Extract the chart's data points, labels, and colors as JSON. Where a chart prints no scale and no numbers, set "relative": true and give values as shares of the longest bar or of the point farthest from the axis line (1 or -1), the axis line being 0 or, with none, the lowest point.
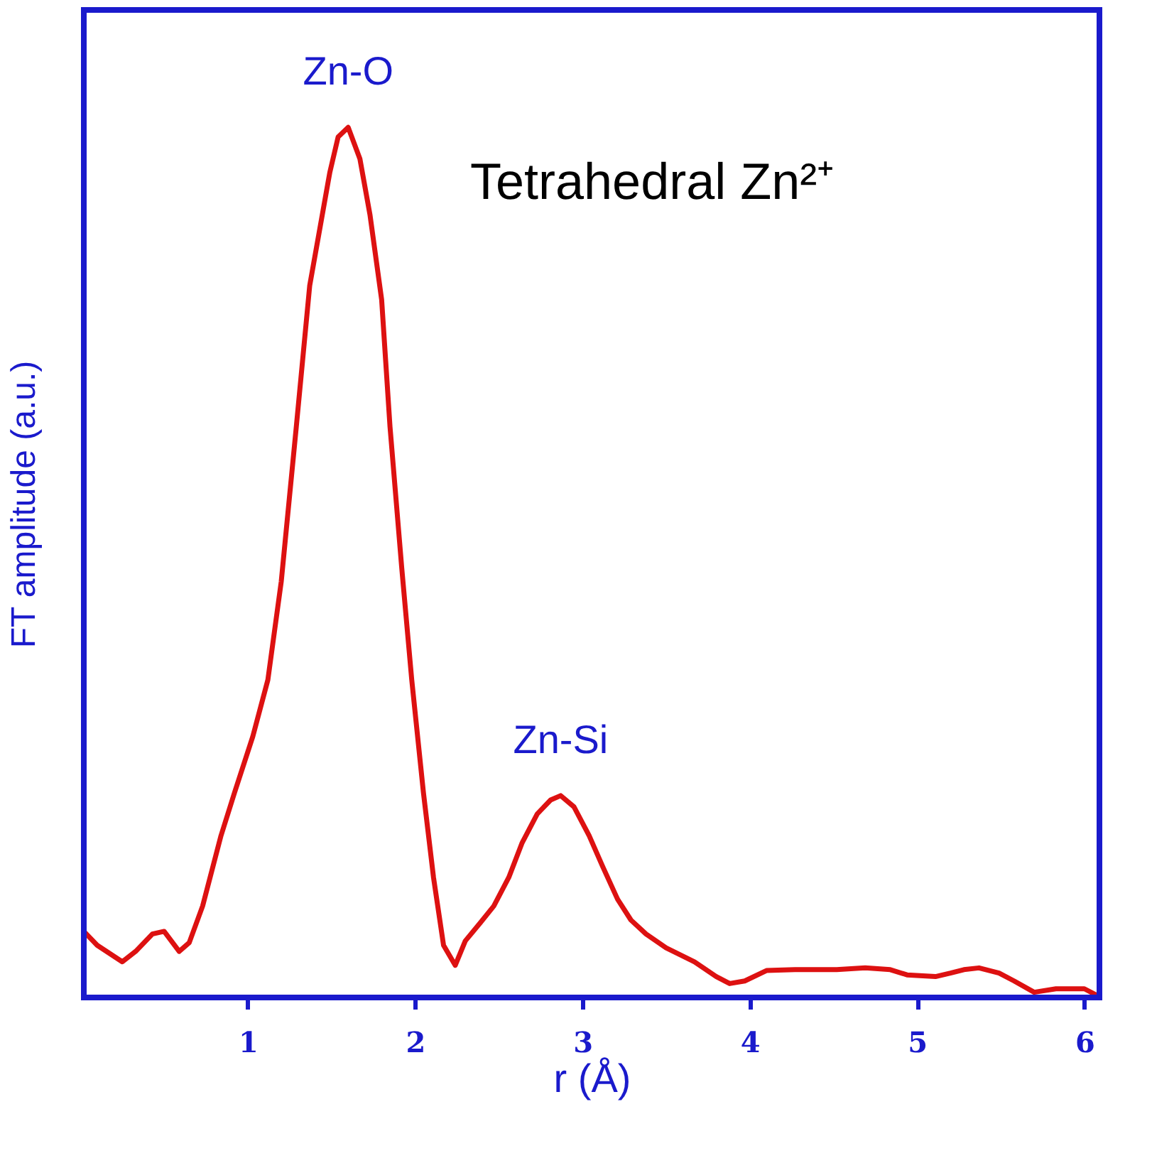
{
  "chart_data": {
    "type": "line",
    "relative": true,
    "xlabel": "r (Å)",
    "ylabel": "FT amplitude (a.u.)",
    "xlim": [
      0.02,
      6.09
    ],
    "xticks": [
      1,
      2,
      3,
      4,
      5,
      6
    ],
    "tick_labels": "x",
    "grid": false,
    "marker": "none",
    "line_style": "solid",
    "annotations": [
      {
        "text": "Zn-O",
        "x": 1.6,
        "y": 1
      },
      {
        "text": "Zn-Si",
        "x": 2.87,
        "y": 0.232
      },
      "Tetrahedral Zn²⁺"
    ],
    "series": [
      {
        "color": "#dd1111",
        "x": [
          0.02,
          0.1,
          0.25,
          0.33,
          0.43,
          0.5,
          0.59,
          0.65,
          0.73,
          0.84,
          0.92,
          1.03,
          1.12,
          1.2,
          1.29,
          1.37,
          1.43,
          1.49,
          1.54,
          1.6,
          1.67,
          1.73,
          1.8,
          1.85,
          1.92,
          1.98,
          2.05,
          2.11,
          2.17,
          2.24,
          2.3,
          2.39,
          2.47,
          2.56,
          2.64,
          2.73,
          2.81,
          2.87,
          2.95,
          3.04,
          3.12,
          3.21,
          3.29,
          3.38,
          3.5,
          3.67,
          3.8,
          3.88,
          3.97,
          4.1,
          4.27,
          4.52,
          4.69,
          4.84,
          4.94,
          5.11,
          5.2,
          5.28,
          5.37,
          5.49,
          5.58,
          5.7,
          5.83,
          6.0,
          6.08
        ],
        "values": [
          0.076,
          0.06,
          0.041,
          0.053,
          0.073,
          0.076,
          0.053,
          0.063,
          0.105,
          0.186,
          0.235,
          0.3,
          0.365,
          0.478,
          0.656,
          0.818,
          0.883,
          0.948,
          0.989,
          1,
          0.964,
          0.9,
          0.802,
          0.656,
          0.494,
          0.365,
          0.235,
          0.138,
          0.06,
          0.037,
          0.065,
          0.086,
          0.105,
          0.138,
          0.178,
          0.211,
          0.227,
          0.232,
          0.219,
          0.186,
          0.151,
          0.113,
          0.089,
          0.073,
          0.057,
          0.041,
          0.024,
          0.016,
          0.019,
          0.031,
          0.032,
          0.032,
          0.034,
          0.032,
          0.026,
          0.024,
          0.028,
          0.032,
          0.034,
          0.028,
          0.019,
          0.006,
          0.01,
          0.01,
          0.002
        ]
      }
    ]
  }
}
